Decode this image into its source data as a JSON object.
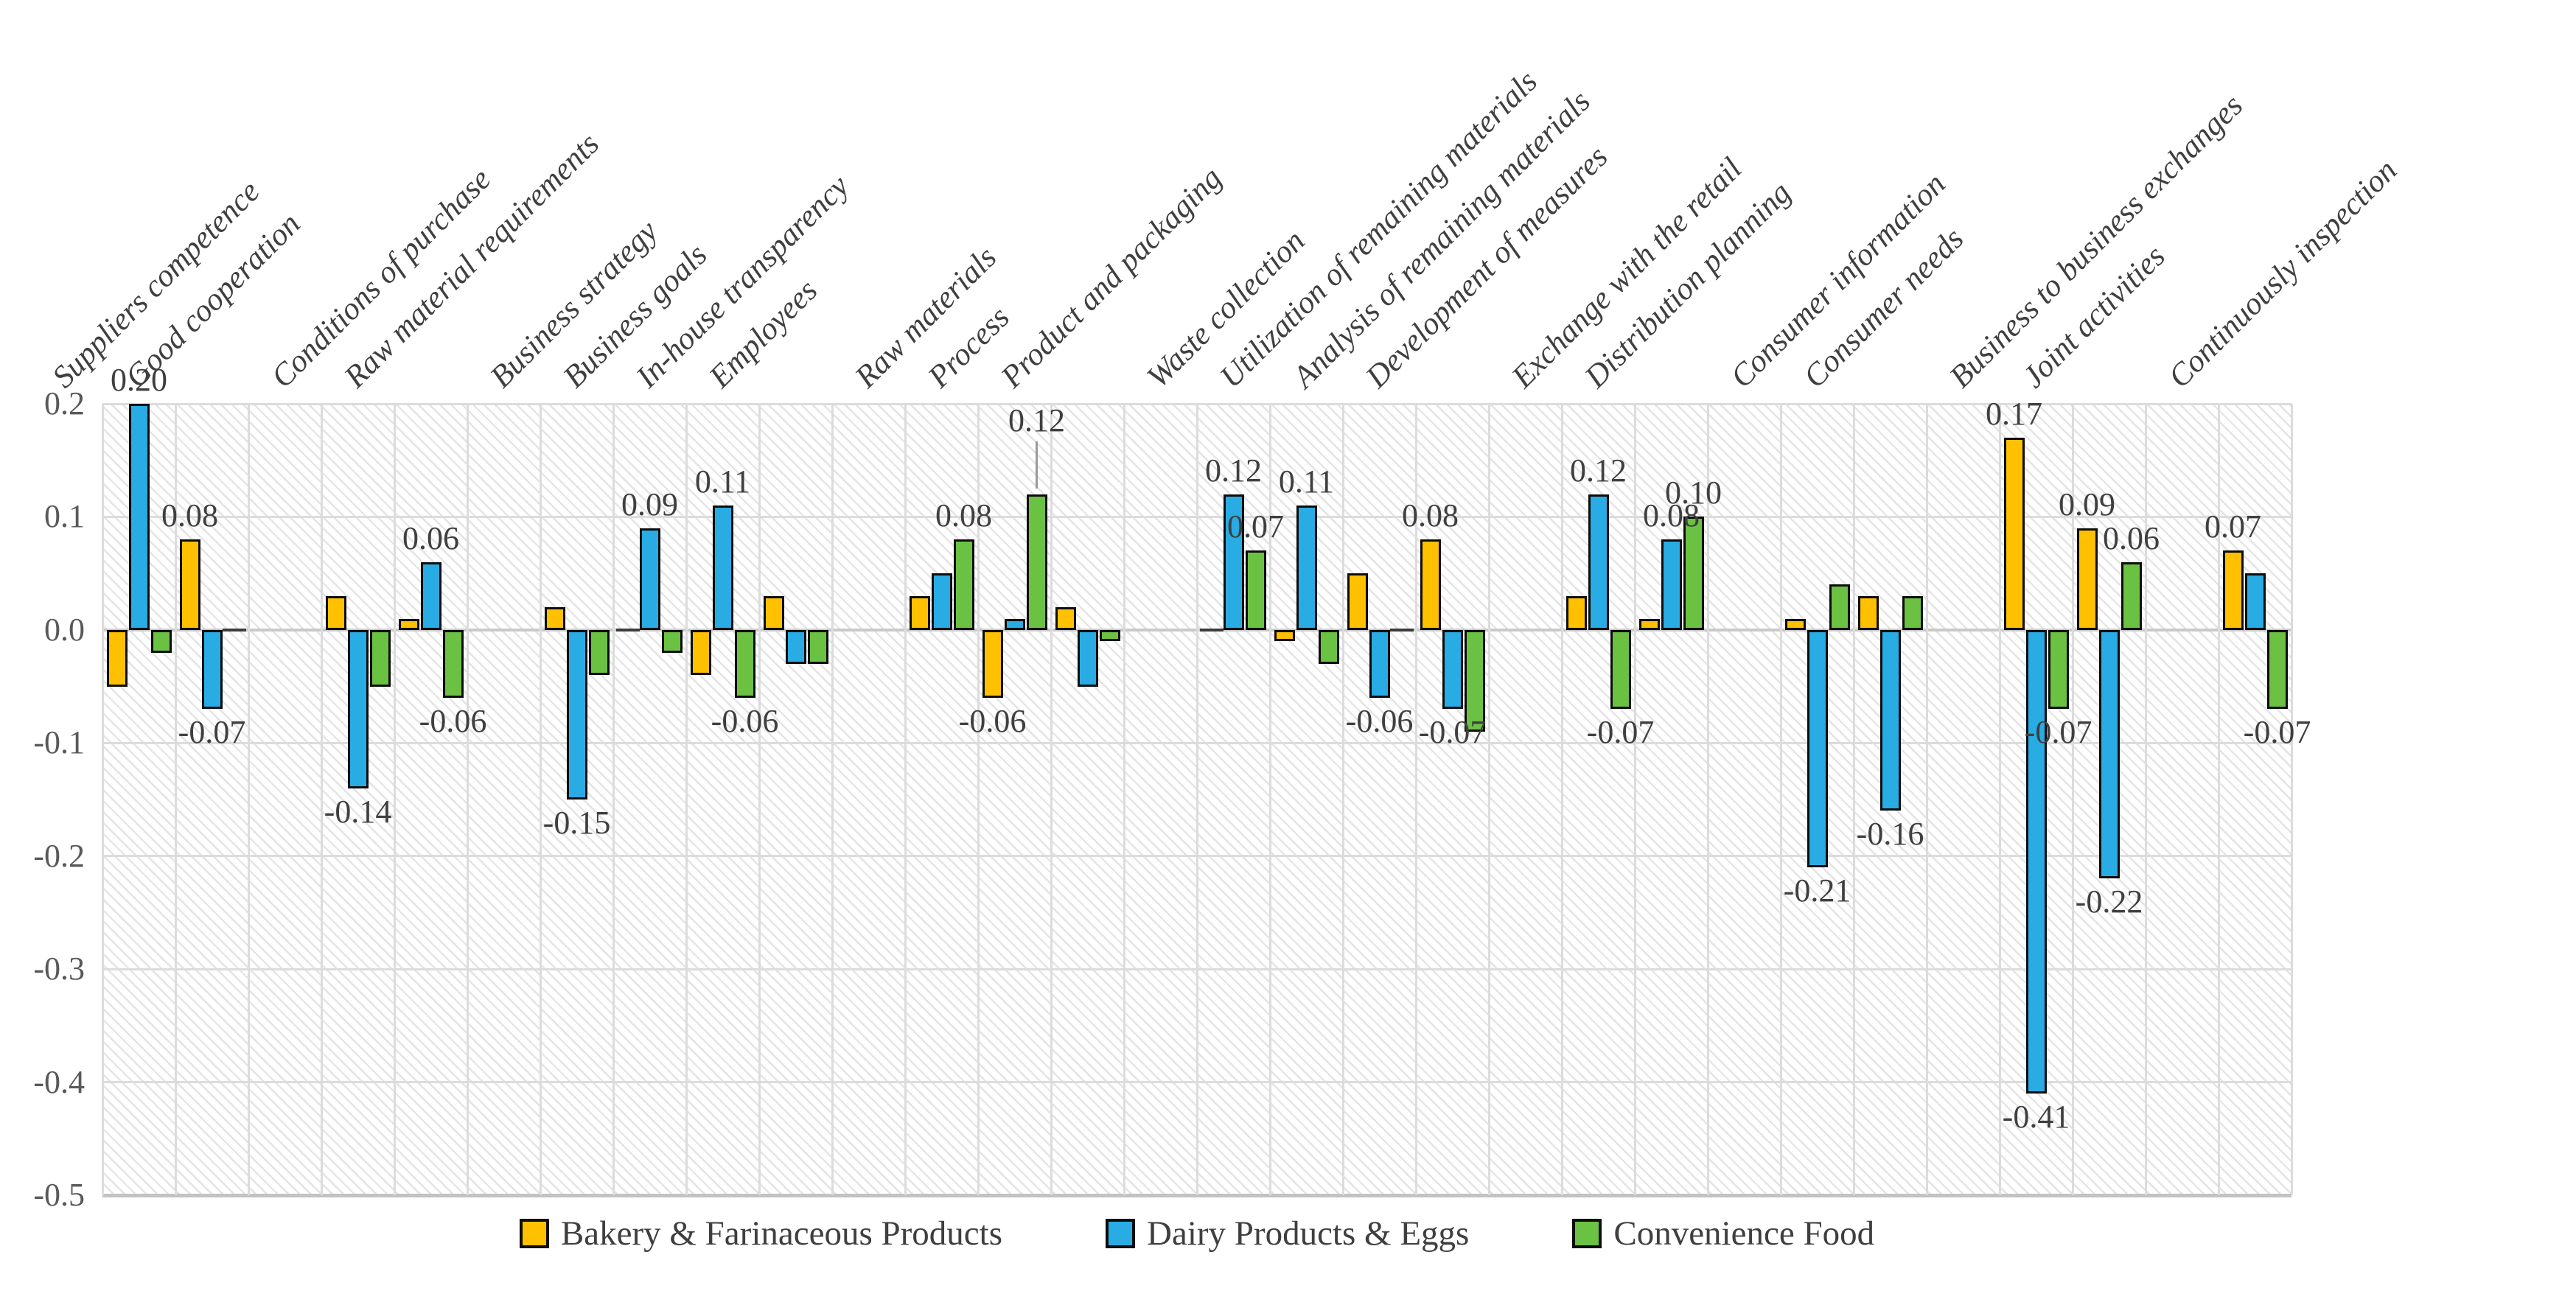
{
  "chart_data": {
    "type": "bar",
    "title": "",
    "xlabel": "",
    "ylabel": "",
    "ylim": [
      -0.5,
      0.2
    ],
    "ytick_step": 0.1,
    "yticks": [
      "0.2",
      "0.1",
      "0.0",
      "-0.1",
      "-0.2",
      "-0.3",
      "-0.4",
      "-0.5"
    ],
    "grid": "on",
    "plot_background": "diagonal-hatch",
    "legend_position": "bottom-center",
    "categories": [
      "Suppliers competence",
      "Good cooperation",
      "Conditions of purchase",
      "Raw material requirements",
      "Business strategy",
      "Business goals",
      "In-house transparency",
      "Employees",
      "Raw materials",
      "Process",
      "Product and packaging",
      "Waste collection",
      "Utilization of remaining materials",
      "Analysis of remaining materials",
      "Development of measures",
      "Exchange with the retail",
      "Distribution planning",
      "Consumer information",
      "Consumer needs",
      "Business to business exchanges",
      "Joint activities",
      "Continuously inspection"
    ],
    "slot_indices": [
      0,
      1,
      3,
      4,
      6,
      7,
      8,
      9,
      11,
      12,
      13,
      15,
      16,
      17,
      18,
      20,
      21,
      23,
      24,
      26,
      27,
      29
    ],
    "total_slots": 30,
    "series": [
      {
        "name": "Bakery & Farinaceous Products",
        "color": "#FFC000",
        "values": [
          -0.05,
          0.08,
          0.03,
          0.01,
          0.02,
          0.0,
          -0.04,
          0.03,
          0.03,
          -0.06,
          0.02,
          0.0,
          -0.01,
          0.05,
          0.08,
          0.03,
          0.01,
          0.01,
          0.03,
          0.17,
          0.09,
          0.07
        ]
      },
      {
        "name": "Dairy Products & Eggs",
        "color": "#29ABE3",
        "values": [
          0.2,
          -0.07,
          -0.14,
          0.06,
          -0.15,
          0.09,
          0.11,
          -0.03,
          0.05,
          0.01,
          -0.05,
          0.12,
          0.11,
          -0.06,
          -0.07,
          0.12,
          0.08,
          -0.21,
          -0.16,
          -0.41,
          -0.22,
          0.05
        ]
      },
      {
        "name": "Convenience Food",
        "color": "#6BC142",
        "values": [
          -0.02,
          0.0,
          -0.05,
          -0.06,
          -0.04,
          -0.02,
          -0.06,
          -0.03,
          0.08,
          0.12,
          -0.01,
          0.07,
          -0.03,
          0.0,
          -0.09,
          -0.07,
          0.1,
          0.04,
          0.03,
          -0.07,
          0.06,
          -0.07
        ]
      }
    ],
    "data_labels": [
      [
        null,
        "0.20",
        null
      ],
      [
        "0.08",
        "-0.07",
        null
      ],
      [
        null,
        "-0.14",
        null
      ],
      [
        null,
        "0.06",
        "-0.06"
      ],
      [
        null,
        "-0.15",
        null
      ],
      [
        null,
        "0.09",
        null
      ],
      [
        null,
        "0.11",
        "-0.06"
      ],
      [
        null,
        null,
        null
      ],
      [
        null,
        null,
        "0.08"
      ],
      [
        "-0.06",
        null,
        "0.12"
      ],
      [
        null,
        null,
        null
      ],
      [
        null,
        "0.12",
        "0.07"
      ],
      [
        null,
        "0.11",
        null
      ],
      [
        null,
        "-0.06",
        null
      ],
      [
        "0.08",
        "-0.07",
        null
      ],
      [
        null,
        "0.12",
        "-0.07"
      ],
      [
        null,
        "0.08",
        "0.10"
      ],
      [
        null,
        "-0.21",
        null
      ],
      [
        null,
        "-0.16",
        null
      ],
      [
        "0.17",
        "-0.41",
        "-0.07"
      ],
      [
        "0.09",
        "-0.22",
        "0.06"
      ],
      [
        "0.07",
        null,
        "-0.07"
      ]
    ],
    "leader_lines": [
      {
        "category_index": 9,
        "series_index": 2
      }
    ]
  }
}
